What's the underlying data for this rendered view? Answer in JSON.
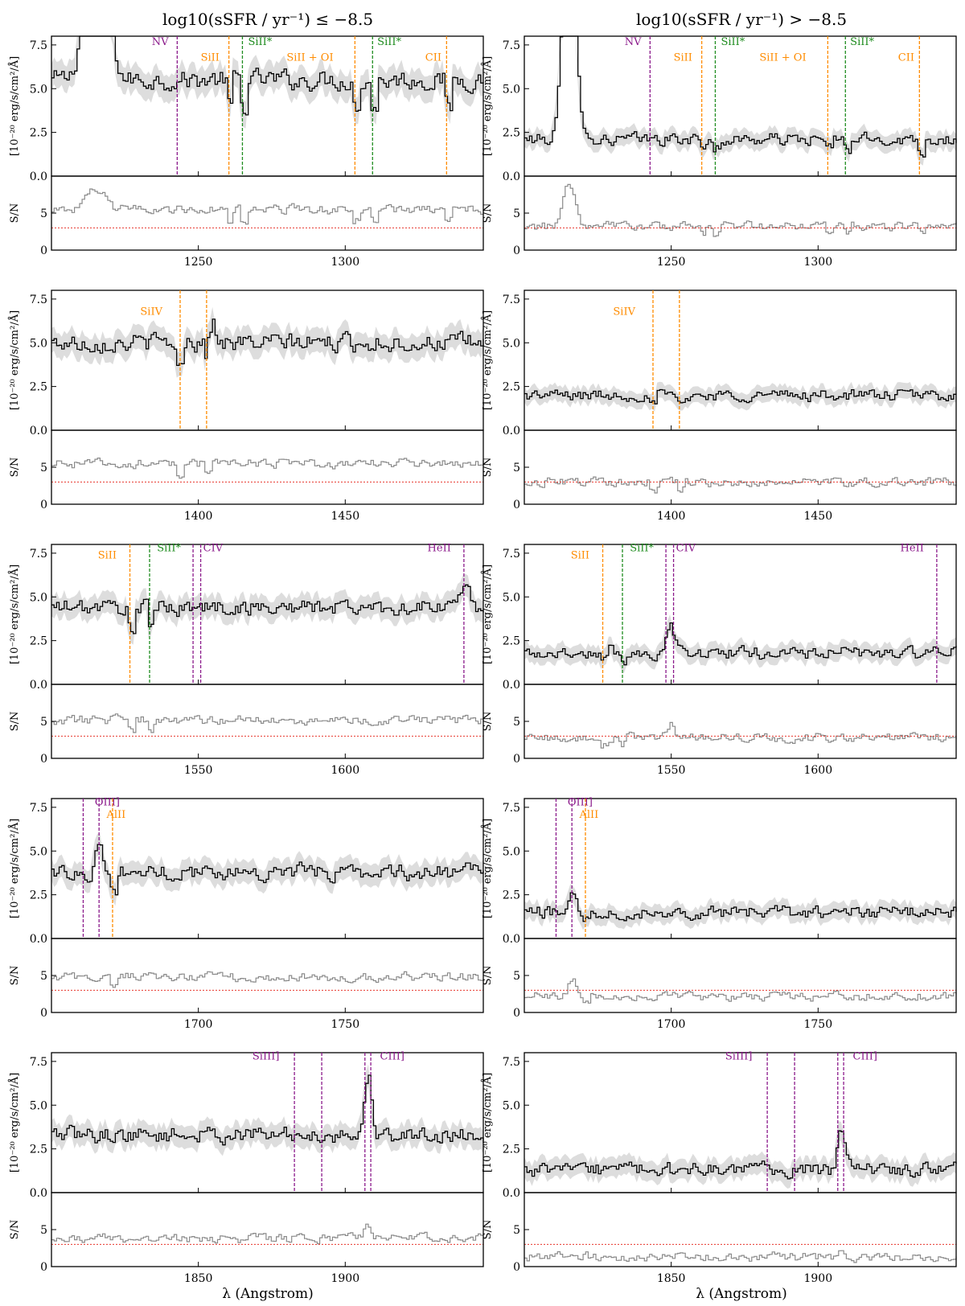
{
  "figure": {
    "column_titles": [
      "log10(sSFR / yr⁻¹) ≤ −8.5",
      "log10(sSFR / yr⁻¹) > −8.5"
    ],
    "xlabel": "λ (Angstrom)",
    "ylabel_flux": "[10⁻²⁰ erg/s/cm²/Å]",
    "ylabel_sn": "S/N",
    "colors": {
      "spectrum": "#000000",
      "error_band": "#dddddd",
      "sn_line": "#8a8a8a",
      "sn_threshold": "#e8362c",
      "purple": "#8b1a8b",
      "orange": "#ff8c00",
      "green": "#1f8c1f"
    }
  },
  "chart_data": [
    {
      "type": "line",
      "row": 0,
      "col": 0,
      "xlim": [
        1200,
        1347
      ],
      "ylim": [
        0,
        8
      ],
      "sn_ylim": [
        0,
        10
      ],
      "xticks": [
        1250,
        1300
      ],
      "yticks": [
        "0.0",
        "2.5",
        "5.0",
        "7.5"
      ],
      "sn_yticks": [
        "0",
        "5"
      ],
      "sn_threshold": 3,
      "flux_level": 5.5,
      "flux_noise": 0.55,
      "sn_level": 5.5,
      "features": [
        {
          "x": 1215,
          "amp": 18,
          "w": 3
        }
      ],
      "sn_features": [
        {
          "x": 1215,
          "amp": 2.5,
          "w": 3
        }
      ],
      "lines": [
        {
          "x": 1242.8,
          "color": "purple"
        },
        {
          "x": 1260.4,
          "color": "orange"
        },
        {
          "x": 1265.0,
          "color": "green"
        },
        {
          "x": 1303.3,
          "color": "orange"
        },
        {
          "x": 1309.3,
          "color": "green"
        },
        {
          "x": 1334.5,
          "color": "orange"
        }
      ],
      "labels": [
        {
          "text": "NV",
          "x": 1237,
          "y": 7.5,
          "color": "purple"
        },
        {
          "text": "SiII",
          "x": 1254,
          "y": 6.6,
          "color": "orange"
        },
        {
          "text": "SiII*",
          "x": 1271,
          "y": 7.5,
          "color": "green"
        },
        {
          "text": "SiII + OI",
          "x": 1288,
          "y": 6.6,
          "color": "orange"
        },
        {
          "text": "SiII*",
          "x": 1315,
          "y": 7.5,
          "color": "green"
        },
        {
          "text": "CII",
          "x": 1330,
          "y": 6.6,
          "color": "orange"
        }
      ]
    },
    {
      "type": "line",
      "row": 0,
      "col": 1,
      "xlim": [
        1200,
        1347
      ],
      "ylim": [
        0,
        8
      ],
      "sn_ylim": [
        0,
        10
      ],
      "xticks": [
        1250,
        1300
      ],
      "yticks": [
        "0.0",
        "2.5",
        "5.0",
        "7.5"
      ],
      "sn_yticks": [
        "0",
        "5"
      ],
      "sn_threshold": 3,
      "flux_level": 2.1,
      "flux_noise": 0.35,
      "sn_level": 3.2,
      "features": [
        {
          "x": 1215,
          "amp": 15,
          "w": 2
        }
      ],
      "sn_features": [
        {
          "x": 1215,
          "amp": 6,
          "w": 2
        }
      ],
      "lines": [
        {
          "x": 1242.8,
          "color": "purple"
        },
        {
          "x": 1260.4,
          "color": "orange"
        },
        {
          "x": 1265.0,
          "color": "green"
        },
        {
          "x": 1303.3,
          "color": "orange"
        },
        {
          "x": 1309.3,
          "color": "green"
        },
        {
          "x": 1334.5,
          "color": "orange"
        }
      ],
      "labels": [
        {
          "text": "NV",
          "x": 1237,
          "y": 7.5,
          "color": "purple"
        },
        {
          "text": "SiII",
          "x": 1254,
          "y": 6.6,
          "color": "orange"
        },
        {
          "text": "SiII*",
          "x": 1271,
          "y": 7.5,
          "color": "green"
        },
        {
          "text": "SiII + OI",
          "x": 1288,
          "y": 6.6,
          "color": "orange"
        },
        {
          "text": "SiII*",
          "x": 1315,
          "y": 7.5,
          "color": "green"
        },
        {
          "text": "CII",
          "x": 1330,
          "y": 6.6,
          "color": "orange"
        }
      ]
    },
    {
      "type": "line",
      "row": 1,
      "col": 0,
      "xlim": [
        1350,
        1497
      ],
      "ylim": [
        0,
        8
      ],
      "sn_ylim": [
        0,
        10
      ],
      "xticks": [
        1400,
        1450
      ],
      "yticks": [
        "0.0",
        "2.5",
        "5.0",
        "7.5"
      ],
      "sn_yticks": [
        "0",
        "5"
      ],
      "sn_threshold": 3,
      "flux_level": 5.0,
      "flux_noise": 0.5,
      "sn_level": 5.5,
      "features": [
        {
          "x": 1403.8,
          "amp": 1.8,
          "w": 1.5
        }
      ],
      "sn_features": [],
      "lines": [
        {
          "x": 1393.8,
          "color": "orange"
        },
        {
          "x": 1402.8,
          "color": "orange"
        }
      ],
      "labels": [
        {
          "text": "SiIV",
          "x": 1384,
          "y": 6.6,
          "color": "orange"
        }
      ]
    },
    {
      "type": "line",
      "row": 1,
      "col": 1,
      "xlim": [
        1350,
        1497
      ],
      "ylim": [
        0,
        8
      ],
      "sn_ylim": [
        0,
        10
      ],
      "xticks": [
        1400,
        1450
      ],
      "yticks": [
        "0.0",
        "2.5",
        "5.0",
        "7.5"
      ],
      "sn_yticks": [
        "0",
        "5"
      ],
      "sn_threshold": 3,
      "flux_level": 2.0,
      "flux_noise": 0.32,
      "sn_level": 3.0,
      "features": [],
      "sn_features": [],
      "lines": [
        {
          "x": 1393.8,
          "color": "orange"
        },
        {
          "x": 1402.8,
          "color": "orange"
        }
      ],
      "labels": [
        {
          "text": "SiIV",
          "x": 1384,
          "y": 6.6,
          "color": "orange"
        }
      ]
    },
    {
      "type": "line",
      "row": 2,
      "col": 0,
      "xlim": [
        1500,
        1647
      ],
      "ylim": [
        0,
        8
      ],
      "sn_ylim": [
        0,
        10
      ],
      "xticks": [
        1550,
        1600
      ],
      "yticks": [
        "0.0",
        "2.5",
        "5.0",
        "7.5"
      ],
      "sn_yticks": [
        "0",
        "5"
      ],
      "sn_threshold": 3,
      "flux_level": 4.4,
      "flux_noise": 0.45,
      "sn_level": 5.2,
      "features": [
        {
          "x": 1640.4,
          "amp": 1.2,
          "w": 1.5
        }
      ],
      "sn_features": [],
      "lines": [
        {
          "x": 1526.7,
          "color": "orange"
        },
        {
          "x": 1533.4,
          "color": "green"
        },
        {
          "x": 1548.2,
          "color": "purple"
        },
        {
          "x": 1550.8,
          "color": "purple"
        },
        {
          "x": 1640.4,
          "color": "purple"
        }
      ],
      "labels": [
        {
          "text": "SiII",
          "x": 1519,
          "y": 7.2,
          "color": "orange"
        },
        {
          "text": "SiII*",
          "x": 1540,
          "y": 7.6,
          "color": "green"
        },
        {
          "text": "CIV",
          "x": 1555,
          "y": 7.6,
          "color": "purple"
        },
        {
          "text": "HeII",
          "x": 1632,
          "y": 7.6,
          "color": "purple"
        }
      ]
    },
    {
      "type": "line",
      "row": 2,
      "col": 1,
      "xlim": [
        1500,
        1647
      ],
      "ylim": [
        0,
        8
      ],
      "sn_ylim": [
        0,
        10
      ],
      "xticks": [
        1550,
        1600
      ],
      "yticks": [
        "0.0",
        "2.5",
        "5.0",
        "7.5"
      ],
      "sn_yticks": [
        "0",
        "5"
      ],
      "sn_threshold": 3,
      "flux_level": 1.8,
      "flux_noise": 0.35,
      "sn_level": 2.8,
      "features": [
        {
          "x": 1549.5,
          "amp": 1.8,
          "w": 1.2
        }
      ],
      "sn_features": [
        {
          "x": 1549.5,
          "amp": 2,
          "w": 1.2
        }
      ],
      "lines": [
        {
          "x": 1526.7,
          "color": "orange"
        },
        {
          "x": 1533.4,
          "color": "green"
        },
        {
          "x": 1548.2,
          "color": "purple"
        },
        {
          "x": 1550.8,
          "color": "purple"
        },
        {
          "x": 1640.4,
          "color": "purple"
        }
      ],
      "labels": [
        {
          "text": "SiII",
          "x": 1519,
          "y": 7.2,
          "color": "orange"
        },
        {
          "text": "SiII*",
          "x": 1540,
          "y": 7.6,
          "color": "green"
        },
        {
          "text": "CIV",
          "x": 1555,
          "y": 7.6,
          "color": "purple"
        },
        {
          "text": "HeII",
          "x": 1632,
          "y": 7.6,
          "color": "purple"
        }
      ]
    },
    {
      "type": "line",
      "row": 3,
      "col": 0,
      "xlim": [
        1650,
        1797
      ],
      "ylim": [
        0,
        8
      ],
      "sn_ylim": [
        0,
        10
      ],
      "xticks": [
        1700,
        1750
      ],
      "yticks": [
        "0.0",
        "2.5",
        "5.0",
        "7.5"
      ],
      "sn_yticks": [
        "0",
        "5"
      ],
      "sn_threshold": 3,
      "flux_level": 3.8,
      "flux_noise": 0.45,
      "sn_level": 4.8,
      "features": [
        {
          "x": 1666.2,
          "amp": 1.8,
          "w": 1.2
        }
      ],
      "sn_features": [],
      "lines": [
        {
          "x": 1660.8,
          "color": "purple"
        },
        {
          "x": 1666.2,
          "color": "purple"
        },
        {
          "x": 1670.8,
          "color": "orange"
        }
      ],
      "labels": [
        {
          "text": "OIII]",
          "x": 1669,
          "y": 7.6,
          "color": "purple"
        },
        {
          "text": "AlII",
          "x": 1672,
          "y": 6.9,
          "color": "orange"
        }
      ]
    },
    {
      "type": "line",
      "row": 3,
      "col": 1,
      "xlim": [
        1650,
        1797
      ],
      "ylim": [
        0,
        8
      ],
      "sn_ylim": [
        0,
        10
      ],
      "xticks": [
        1700,
        1750
      ],
      "yticks": [
        "0.0",
        "2.5",
        "5.0",
        "7.5"
      ],
      "sn_yticks": [
        "0",
        "5"
      ],
      "sn_threshold": 3,
      "flux_level": 1.5,
      "flux_noise": 0.35,
      "sn_level": 2.2,
      "features": [
        {
          "x": 1666.2,
          "amp": 1.4,
          "w": 1.2
        }
      ],
      "sn_features": [
        {
          "x": 1666.2,
          "amp": 2.5,
          "w": 1.2
        }
      ],
      "lines": [
        {
          "x": 1660.8,
          "color": "purple"
        },
        {
          "x": 1666.2,
          "color": "purple"
        },
        {
          "x": 1670.8,
          "color": "orange"
        }
      ],
      "labels": [
        {
          "text": "OIII]",
          "x": 1669,
          "y": 7.6,
          "color": "purple"
        },
        {
          "text": "AlII",
          "x": 1672,
          "y": 6.9,
          "color": "orange"
        }
      ]
    },
    {
      "type": "line",
      "row": 4,
      "col": 0,
      "xlim": [
        1800,
        1947
      ],
      "ylim": [
        0,
        8
      ],
      "sn_ylim": [
        0,
        10
      ],
      "xticks": [
        1850,
        1900
      ],
      "yticks": [
        "0.0",
        "2.5",
        "5.0",
        "7.5"
      ],
      "sn_yticks": [
        "0",
        "5"
      ],
      "sn_threshold": 3,
      "flux_level": 3.3,
      "flux_noise": 0.45,
      "sn_level": 3.8,
      "features": [
        {
          "x": 1907.5,
          "amp": 3.2,
          "w": 1.3
        }
      ],
      "sn_features": [
        {
          "x": 1907.5,
          "amp": 1.5,
          "w": 1.3
        }
      ],
      "lines": [
        {
          "x": 1882.7,
          "color": "purple"
        },
        {
          "x": 1892.0,
          "color": "purple"
        },
        {
          "x": 1906.7,
          "color": "purple"
        },
        {
          "x": 1908.7,
          "color": "purple"
        }
      ],
      "labels": [
        {
          "text": "SiIII]",
          "x": 1873,
          "y": 7.6,
          "color": "purple"
        },
        {
          "text": "CIII]",
          "x": 1916,
          "y": 7.6,
          "color": "purple"
        }
      ]
    },
    {
      "type": "line",
      "row": 4,
      "col": 1,
      "xlim": [
        1800,
        1947
      ],
      "ylim": [
        0,
        8
      ],
      "sn_ylim": [
        0,
        10
      ],
      "xticks": [
        1850,
        1900
      ],
      "yticks": [
        "0.0",
        "2.5",
        "5.0",
        "7.5"
      ],
      "sn_yticks": [
        "0",
        "5"
      ],
      "sn_threshold": 3,
      "flux_level": 1.3,
      "flux_noise": 0.4,
      "sn_level": 1.3,
      "features": [
        {
          "x": 1907.5,
          "amp": 2.5,
          "w": 1.2
        }
      ],
      "sn_features": [
        {
          "x": 1907.5,
          "amp": 1.5,
          "w": 1.2
        }
      ],
      "lines": [
        {
          "x": 1882.7,
          "color": "purple"
        },
        {
          "x": 1892.0,
          "color": "purple"
        },
        {
          "x": 1906.7,
          "color": "purple"
        },
        {
          "x": 1908.7,
          "color": "purple"
        }
      ],
      "labels": [
        {
          "text": "SiIII]",
          "x": 1873,
          "y": 7.6,
          "color": "purple"
        },
        {
          "text": "CIII]",
          "x": 1916,
          "y": 7.6,
          "color": "purple"
        }
      ]
    }
  ]
}
